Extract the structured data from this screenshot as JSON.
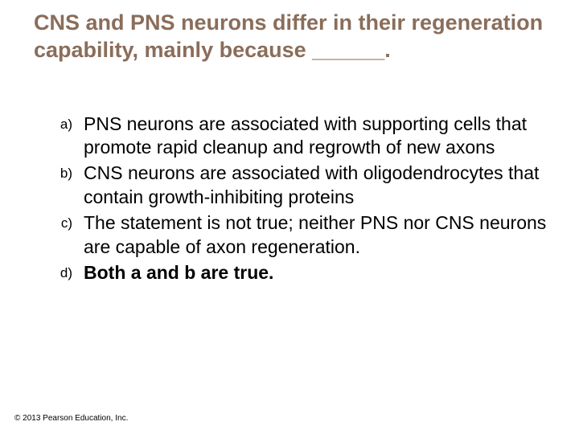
{
  "question": {
    "text": "CNS and PNS neurons differ in their regeneration capability, mainly because ______.",
    "color": "#8a6d5a",
    "fontsize": 27,
    "fontweight": "bold"
  },
  "options": [
    {
      "marker": "a)",
      "text": "PNS neurons are associated with supporting cells that promote rapid cleanup and regrowth of new axons",
      "bold": false
    },
    {
      "marker": "b)",
      "text": "CNS neurons are associated with oligodendrocytes that contain growth-inhibiting proteins",
      "bold": false
    },
    {
      "marker": "c)",
      "text": "The statement is not true; neither PNS nor CNS neurons are capable of axon regeneration.",
      "bold": false
    },
    {
      "marker": "d)",
      "text": "Both a and b are true.",
      "bold": true
    }
  ],
  "option_style": {
    "marker_fontsize": 17,
    "text_fontsize": 23,
    "text_color": "#000000"
  },
  "copyright": {
    "text": "© 2013 Pearson Education, Inc.",
    "fontsize": 10,
    "color": "#000000"
  },
  "background_color": "#ffffff"
}
